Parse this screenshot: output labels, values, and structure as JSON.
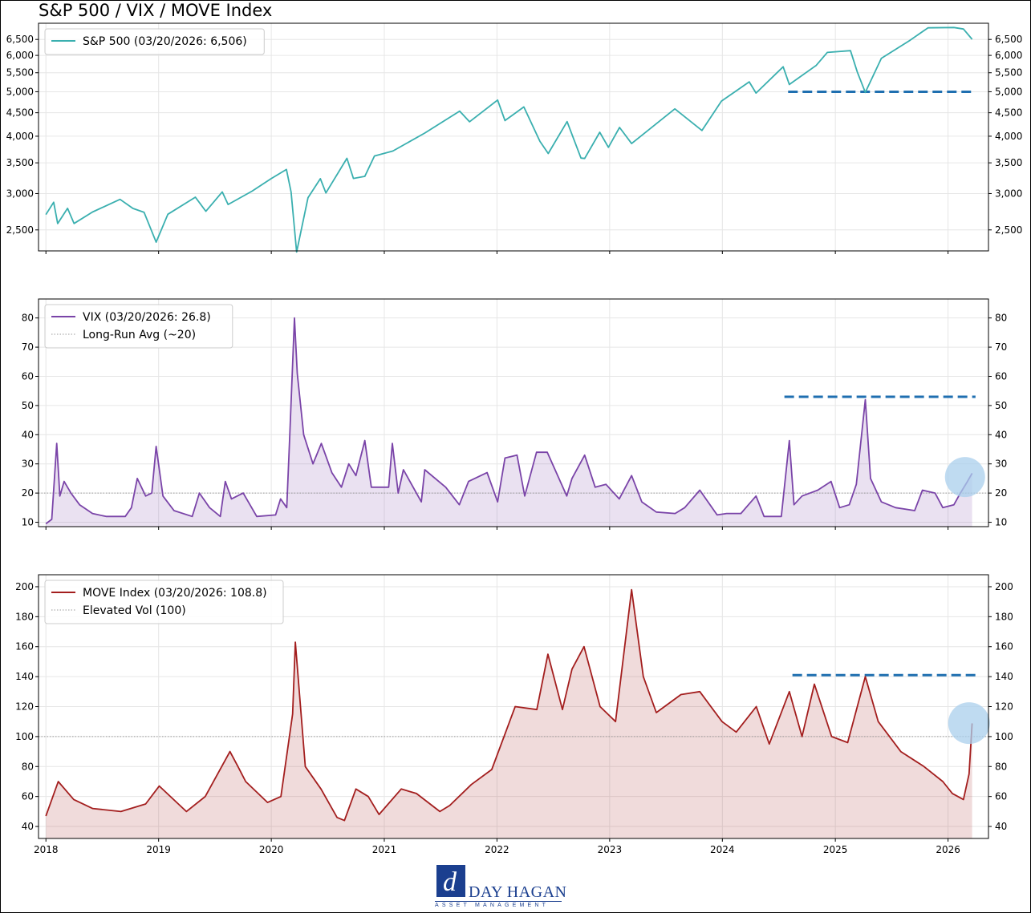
{
  "title": "S&P 500 / VIX / MOVE Index",
  "x_axis": {
    "years": [
      "2018",
      "2019",
      "2020",
      "2021",
      "2022",
      "2023",
      "2024",
      "2025",
      "2026"
    ]
  },
  "logo": {
    "name": "DAY HAGAN",
    "sub": "ASSET MANAGEMENT",
    "mark": "d"
  },
  "chart_data": [
    {
      "type": "line",
      "scale": "log",
      "y_ticks": [
        "2,500",
        "3,000",
        "3,500",
        "4,000",
        "4,500",
        "5,000",
        "5,500",
        "6,000",
        "6,500"
      ],
      "y_tick_values": [
        2500,
        3000,
        3500,
        4000,
        4500,
        5000,
        5500,
        6000,
        6500
      ],
      "ylim": [
        2250,
        7050
      ],
      "legend": {
        "placement": "top-left",
        "entries": [
          {
            "label": "S&P 500 (03/20/2026: 6,506)",
            "style": "solid",
            "color": "#3aafaf"
          }
        ]
      },
      "series": [
        {
          "name": "S&P 500 (03/20/2026: 6,506)",
          "color": "#3aafaf",
          "x": [
            "2018-01-01",
            "2018-01-26",
            "2018-02-08",
            "2018-03-12",
            "2018-04-02",
            "2018-06-01",
            "2018-08-29",
            "2018-10-10",
            "2018-11-15",
            "2018-12-24",
            "2019-01-31",
            "2019-04-30",
            "2019-06-03",
            "2019-07-26",
            "2019-08-14",
            "2019-10-31",
            "2019-12-31",
            "2020-02-19",
            "2020-03-05",
            "2020-03-23",
            "2020-04-29",
            "2020-06-08",
            "2020-06-26",
            "2020-09-02",
            "2020-09-23",
            "2020-10-30",
            "2020-11-30",
            "2021-01-29",
            "2021-05-12",
            "2021-09-02",
            "2021-10-04",
            "2022-01-03",
            "2022-01-27",
            "2022-03-29",
            "2022-05-20",
            "2022-06-16",
            "2022-08-16",
            "2022-09-30",
            "2022-10-12",
            "2022-11-30",
            "2022-12-28",
            "2023-02-02",
            "2023-03-13",
            "2023-07-31",
            "2023-10-27",
            "2023-12-29",
            "2024-03-28",
            "2024-04-19",
            "2024-07-16",
            "2024-08-05",
            "2024-10-31",
            "2024-12-06",
            "2025-02-19",
            "2025-03-13",
            "2025-04-08",
            "2025-05-30",
            "2025-08-29",
            "2025-10-28",
            "2026-01-20",
            "2026-02-20",
            "2026-03-20"
          ],
          "values": [
            2700,
            2872,
            2581,
            2786,
            2582,
            2735,
            2914,
            2785,
            2730,
            2351,
            2704,
            2946,
            2744,
            3025,
            2840,
            3037,
            3231,
            3386,
            3024,
            2237,
            2939,
            3232,
            3009,
            3580,
            3237,
            3270,
            3622,
            3714,
            4063,
            4537,
            4300,
            4796,
            4326,
            4632,
            3901,
            3667,
            4305,
            3585,
            3577,
            4080,
            3783,
            4179,
            3855,
            4589,
            4117,
            4770,
            5254,
            4967,
            5667,
            5186,
            5706,
            6090,
            6144,
            5521,
            4983,
            5912,
            6460,
            6890,
            6900,
            6850,
            6506
          ]
        }
      ],
      "reference_lines": [
        {
          "style": "dashed",
          "color": "#1f6fb0",
          "value": 5000,
          "x_start": "2024-08-01",
          "x_end": "2026-03-31"
        }
      ]
    },
    {
      "type": "area",
      "y_ticks": [
        "10",
        "20",
        "30",
        "40",
        "50",
        "60",
        "70",
        "80"
      ],
      "y_tick_values": [
        10,
        20,
        30,
        40,
        50,
        60,
        70,
        80
      ],
      "ylim": [
        8.5,
        86.5
      ],
      "legend": {
        "placement": "top-left",
        "entries": [
          {
            "label": "VIX (03/20/2026: 26.8)",
            "style": "solid",
            "color": "#7a44a8"
          },
          {
            "label": "Long-Run Avg (~20)",
            "style": "dotted",
            "color": "#999999"
          }
        ]
      },
      "series": [
        {
          "name": "VIX (03/20/2026: 26.8)",
          "color": "#7a44a8",
          "x": [
            "2018-01-01",
            "2018-01-20",
            "2018-02-05",
            "2018-02-15",
            "2018-03-01",
            "2018-03-23",
            "2018-04-20",
            "2018-06-01",
            "2018-07-15",
            "2018-09-15",
            "2018-10-05",
            "2018-10-24",
            "2018-11-20",
            "2018-12-10",
            "2018-12-24",
            "2019-01-15",
            "2019-02-20",
            "2019-04-20",
            "2019-05-13",
            "2019-06-15",
            "2019-07-20",
            "2019-08-05",
            "2019-08-25",
            "2019-10-02",
            "2019-11-15",
            "2020-01-15",
            "2020-01-31",
            "2020-02-20",
            "2020-03-01",
            "2020-03-16",
            "2020-03-25",
            "2020-04-15",
            "2020-05-15",
            "2020-06-11",
            "2020-07-15",
            "2020-08-15",
            "2020-09-08",
            "2020-10-01",
            "2020-10-30",
            "2020-11-20",
            "2021-01-15",
            "2021-01-27",
            "2021-02-15",
            "2021-03-04",
            "2021-05-01",
            "2021-05-12",
            "2021-07-19",
            "2021-09-01",
            "2021-10-01",
            "2021-11-30",
            "2022-01-03",
            "2022-01-27",
            "2022-03-07",
            "2022-04-01",
            "2022-05-09",
            "2022-06-13",
            "2022-08-15",
            "2022-09-01",
            "2022-10-12",
            "2022-11-15",
            "2022-12-20",
            "2023-02-01",
            "2023-03-13",
            "2023-04-15",
            "2023-06-01",
            "2023-08-01",
            "2023-09-01",
            "2023-10-20",
            "2023-12-15",
            "2024-01-15",
            "2024-03-01",
            "2024-04-19",
            "2024-05-15",
            "2024-07-10",
            "2024-08-05",
            "2024-08-20",
            "2024-09-15",
            "2024-11-05",
            "2024-12-18",
            "2025-01-15",
            "2025-02-15",
            "2025-03-10",
            "2025-04-08",
            "2025-04-25",
            "2025-05-30",
            "2025-07-15",
            "2025-09-15",
            "2025-10-10",
            "2025-11-20",
            "2025-12-15",
            "2026-01-20",
            "2026-02-10",
            "2026-03-05",
            "2026-03-20"
          ],
          "values": [
            9.5,
            11,
            37,
            19,
            24,
            20,
            16,
            13,
            12,
            12,
            15,
            25,
            19,
            20,
            36,
            19,
            14,
            12,
            20,
            15,
            12,
            24,
            18,
            20,
            12,
            12.5,
            18,
            15,
            40,
            80,
            61,
            40,
            30,
            37,
            27,
            22,
            30,
            26,
            38,
            22,
            22,
            37,
            20,
            28,
            17,
            28,
            22,
            16,
            24,
            27,
            17,
            32,
            33,
            19,
            34,
            34,
            19,
            25,
            33,
            22,
            23,
            18,
            26,
            17,
            13.5,
            13,
            15,
            21,
            12.5,
            13,
            13,
            19,
            12,
            12,
            38,
            16,
            19,
            21,
            24,
            15,
            16,
            23,
            52,
            25,
            17,
            15,
            14,
            21,
            20,
            15,
            16,
            20,
            24,
            26.8
          ]
        }
      ],
      "reference_lines": [
        {
          "style": "dotted",
          "color": "#999999",
          "value": 20
        },
        {
          "style": "dashed",
          "color": "#1f6fb0",
          "value": 53,
          "x_start": "2024-07-20",
          "x_end": "2026-03-31"
        }
      ],
      "highlight": {
        "shape": "circle",
        "color": "#a9cfec",
        "x": "2026-02-25",
        "y": 25.5
      }
    },
    {
      "type": "area",
      "y_ticks": [
        "40",
        "60",
        "80",
        "100",
        "120",
        "140",
        "160",
        "180",
        "200"
      ],
      "y_tick_values": [
        40,
        60,
        80,
        100,
        120,
        140,
        160,
        180,
        200
      ],
      "ylim": [
        32,
        208
      ],
      "legend": {
        "placement": "top-left",
        "entries": [
          {
            "label": "MOVE Index (03/20/2026: 108.8)",
            "style": "solid",
            "color": "#a31e1e"
          },
          {
            "label": "Elevated Vol (100)",
            "style": "dotted",
            "color": "#999999"
          }
        ]
      },
      "series": [
        {
          "name": "MOVE Index (03/20/2026: 108.8)",
          "color": "#a31e1e",
          "x": [
            "2018-01-01",
            "2018-02-10",
            "2018-04-01",
            "2018-06-01",
            "2018-09-01",
            "2018-11-20",
            "2019-01-03",
            "2019-04-01",
            "2019-06-01",
            "2019-08-20",
            "2019-09-15",
            "2019-10-10",
            "2019-12-20",
            "2020-02-01",
            "2020-03-10",
            "2020-03-19",
            "2020-04-20",
            "2020-06-10",
            "2020-08-01",
            "2020-08-25",
            "2020-10-01",
            "2020-11-10",
            "2020-12-15",
            "2021-02-25",
            "2021-04-15",
            "2021-06-30",
            "2021-08-01",
            "2021-10-10",
            "2021-12-15",
            "2022-03-01",
            "2022-05-10",
            "2022-06-15",
            "2022-08-01",
            "2022-09-01",
            "2022-10-10",
            "2022-12-01",
            "2023-01-20",
            "2023-03-13",
            "2023-04-20",
            "2023-06-01",
            "2023-08-20",
            "2023-10-20",
            "2023-12-31",
            "2024-02-15",
            "2024-04-20",
            "2024-06-01",
            "2024-08-05",
            "2024-09-15",
            "2024-10-25",
            "2024-12-20",
            "2025-02-10",
            "2025-04-08",
            "2025-05-20",
            "2025-08-01",
            "2025-10-15",
            "2025-12-15",
            "2026-01-15",
            "2026-02-20",
            "2026-03-10",
            "2026-03-20"
          ],
          "values": [
            47,
            70,
            58,
            52,
            50,
            55,
            67,
            50,
            60,
            90,
            80,
            70,
            56,
            60,
            115,
            163,
            80,
            65,
            46,
            44,
            65,
            60,
            48,
            65,
            62,
            50,
            54,
            68,
            78,
            120,
            118,
            155,
            118,
            145,
            160,
            120,
            110,
            198,
            140,
            116,
            128,
            130,
            110,
            103,
            120,
            95,
            130,
            100,
            135,
            100,
            96,
            140,
            110,
            90,
            80,
            70,
            62,
            58,
            75,
            108.8
          ]
        }
      ],
      "reference_lines": [
        {
          "style": "dotted",
          "color": "#999999",
          "value": 100
        },
        {
          "style": "dashed",
          "color": "#1f6fb0",
          "value": 141,
          "x_start": "2024-08-15",
          "x_end": "2026-03-31"
        }
      ],
      "highlight": {
        "shape": "circle",
        "color": "#a9cfec",
        "x": "2026-03-10",
        "y": 109
      }
    }
  ]
}
